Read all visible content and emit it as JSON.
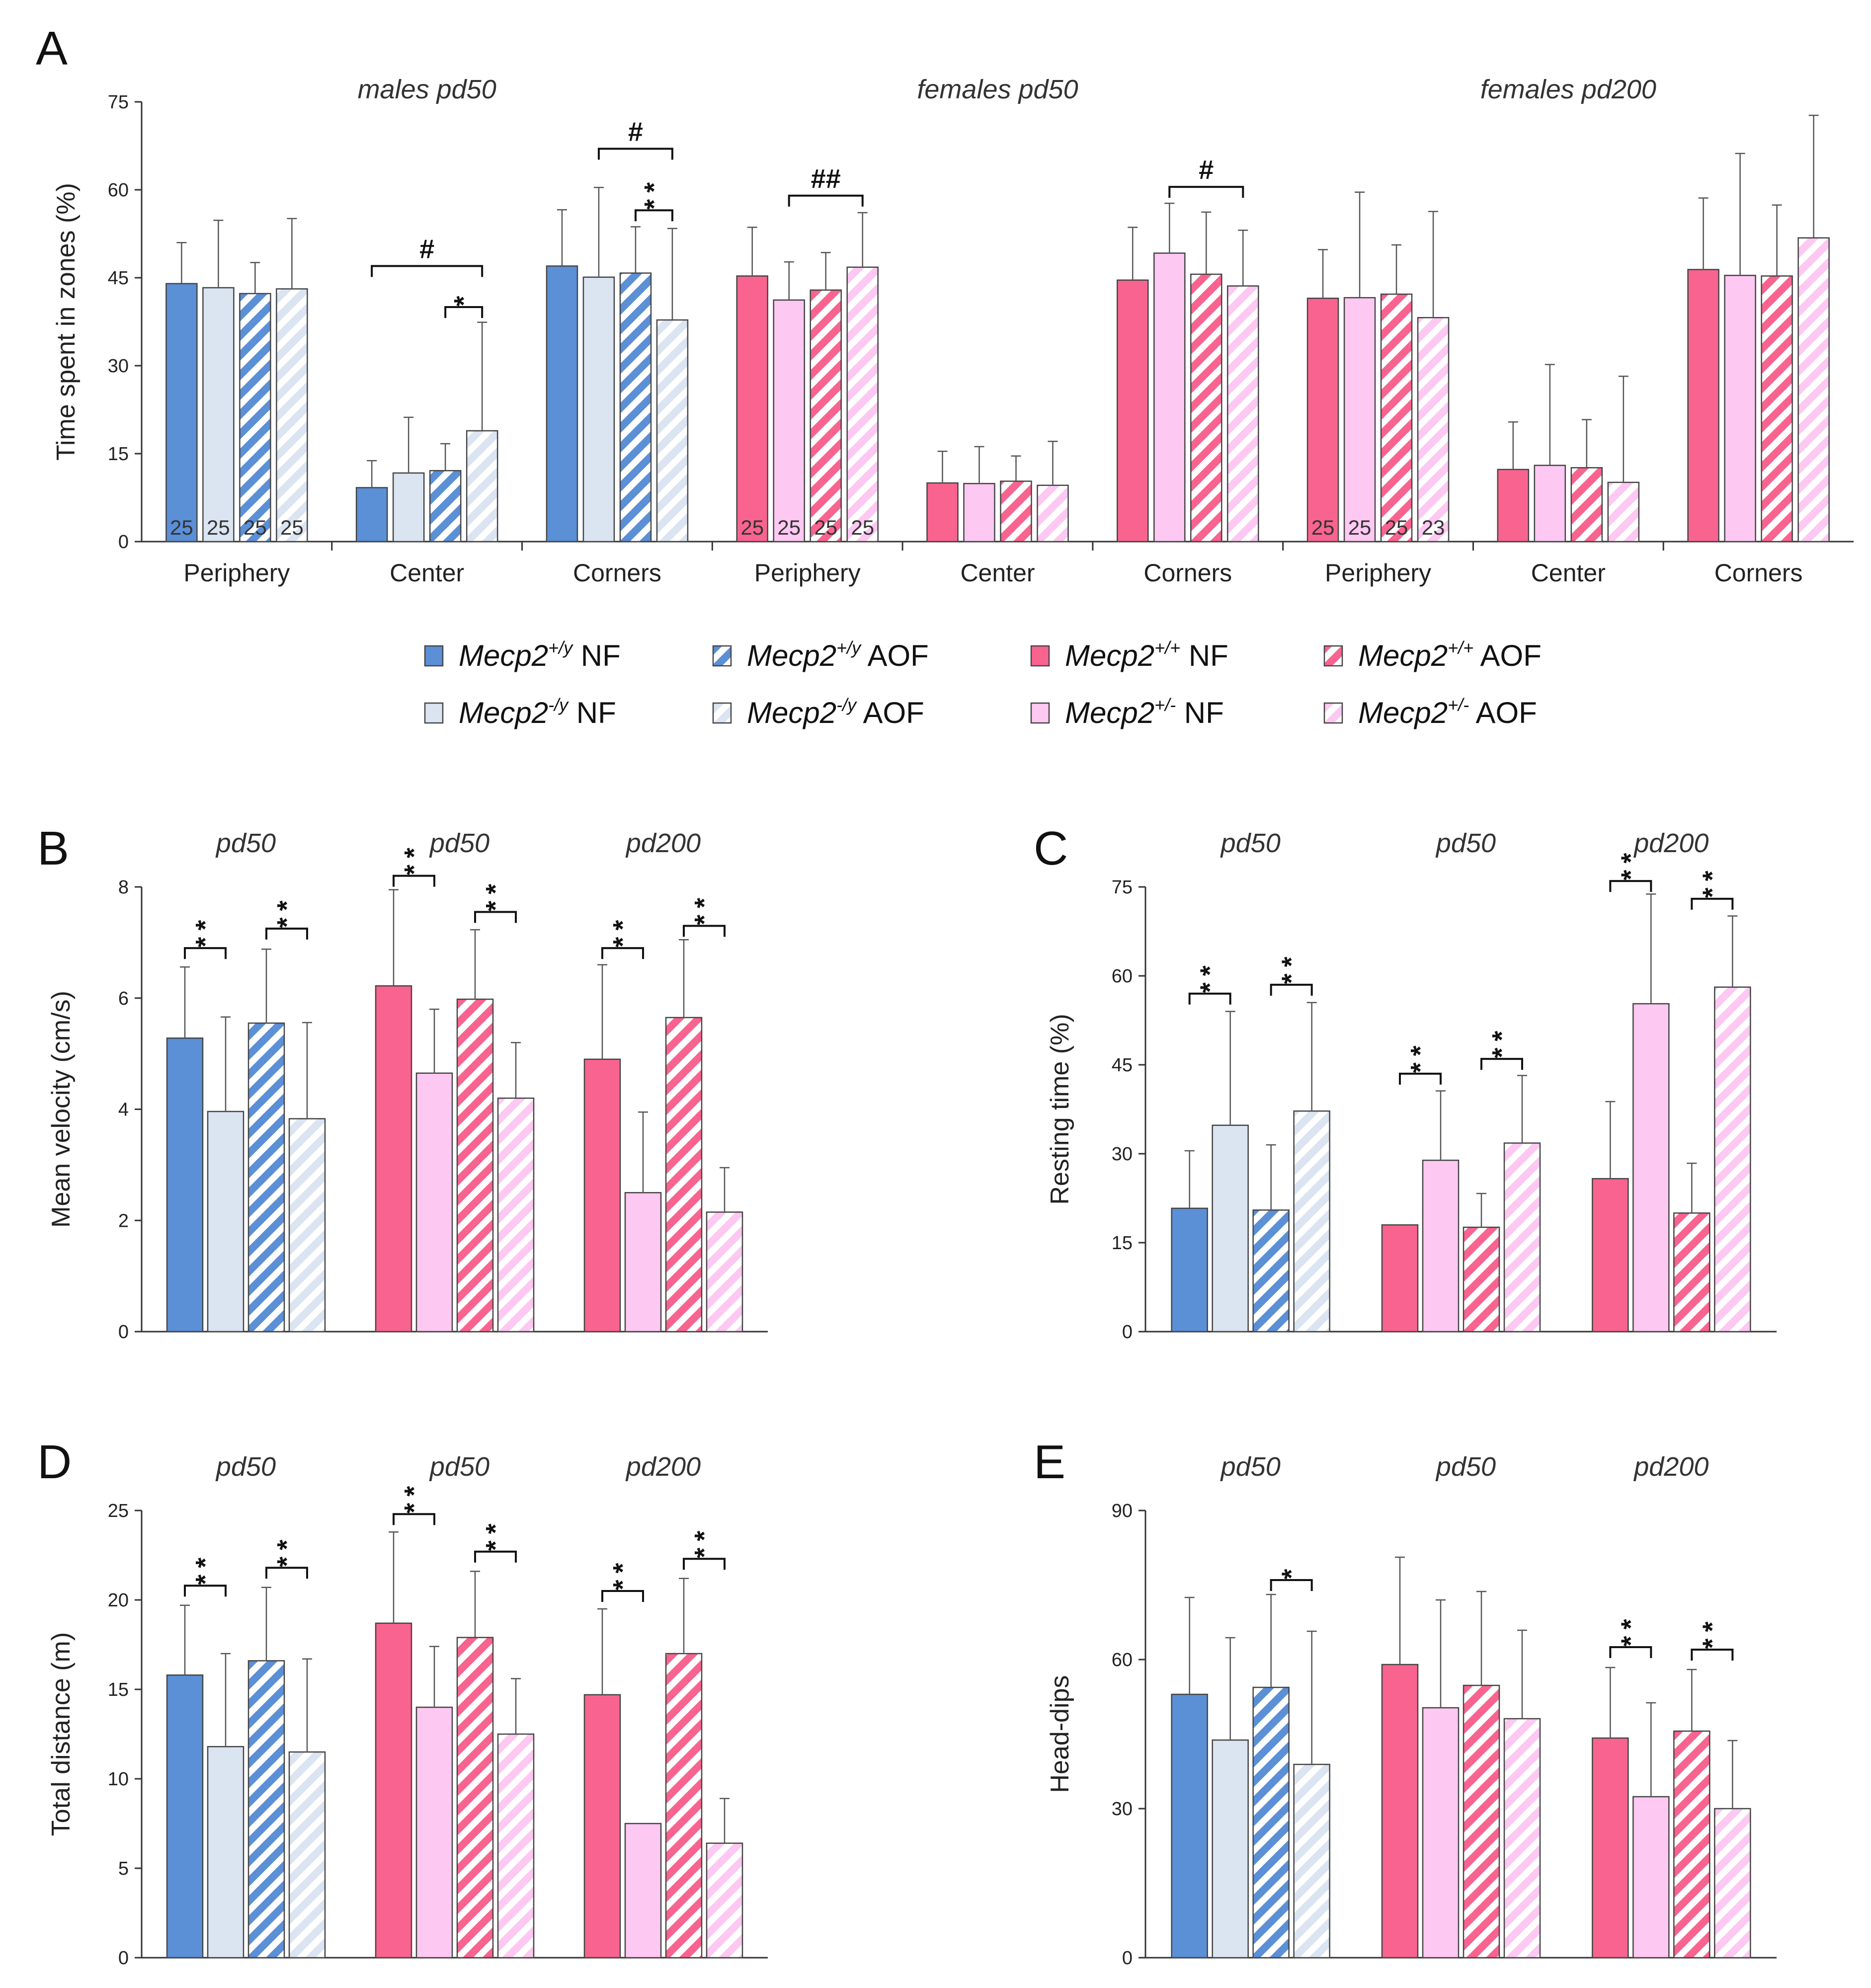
{
  "colors": {
    "male_wt": "#5b8fd6",
    "male_wt_dark": "#4a7cc0",
    "male_ko": "#dbe4f1",
    "female_wt": "#f8648f",
    "female_het": "#fdc8f2",
    "axis": "#333333",
    "bar_edge": "#444444"
  },
  "legend": {
    "items": [
      {
        "gene": "Mecp2",
        "sup": "+/y",
        "group": "NF",
        "fill": "male_wt",
        "pattern": false
      },
      {
        "gene": "Mecp2",
        "sup": "+/y",
        "group": "AOF",
        "fill": "male_wt",
        "pattern": true
      },
      {
        "gene": "Mecp2",
        "sup": "+/+",
        "group": "NF",
        "fill": "female_wt",
        "pattern": false
      },
      {
        "gene": "Mecp2",
        "sup": "+/+",
        "group": "AOF",
        "fill": "female_wt",
        "pattern": true
      },
      {
        "gene": "Mecp2",
        "sup": "-/y",
        "group": "NF",
        "fill": "male_ko",
        "pattern": false
      },
      {
        "gene": "Mecp2",
        "sup": "-/y",
        "group": "AOF",
        "fill": "male_ko",
        "pattern": true
      },
      {
        "gene": "Mecp2",
        "sup": "+/-",
        "group": "NF",
        "fill": "female_het",
        "pattern": false
      },
      {
        "gene": "Mecp2",
        "sup": "+/-",
        "group": "AOF",
        "fill": "female_het",
        "pattern": true
      }
    ]
  },
  "chart_data": [
    {
      "panel": "A",
      "type": "bar",
      "ylabel": "Time spent in zones (%)",
      "ylim": [
        0,
        75
      ],
      "yticks": [
        0,
        15,
        30,
        45,
        60,
        75
      ],
      "groups": [
        "males pd50",
        "females pd50",
        "females pd200"
      ],
      "categories": [
        "Periphery",
        "Center",
        "Corners",
        "Periphery",
        "Center",
        "Corners",
        "Periphery",
        "Center",
        "Corners"
      ],
      "series_styles": [
        [
          "male_wt",
          false
        ],
        [
          "male_ko",
          false
        ],
        [
          "male_wt",
          true
        ],
        [
          "male_ko",
          true
        ]
      ],
      "female_styles": [
        [
          "female_wt",
          false
        ],
        [
          "female_het",
          false
        ],
        [
          "female_wt",
          true
        ],
        [
          "female_het",
          true
        ]
      ],
      "values": [
        [
          44,
          43.3,
          42.3,
          43.1
        ],
        [
          9.2,
          11.7,
          12.1,
          18.9
        ],
        [
          47,
          45.1,
          45.8,
          37.8
        ],
        [
          45.3,
          41.2,
          42.9,
          46.8
        ],
        [
          10,
          9.9,
          10.3,
          9.6
        ],
        [
          44.6,
          49.2,
          45.6,
          43.6
        ],
        [
          41.5,
          41.6,
          42.2,
          38.2
        ],
        [
          12.3,
          13.0,
          12.6,
          10.1
        ],
        [
          46.4,
          45.4,
          45.3,
          51.8
        ]
      ],
      "errors": [
        [
          7,
          11.5,
          5.3,
          12
        ],
        [
          4.6,
          9.5,
          4.6,
          18.5
        ],
        [
          9.6,
          15.3,
          7.9,
          15.6
        ],
        [
          8.3,
          6.5,
          6.4,
          9.3
        ],
        [
          5.4,
          6.3,
          4.3,
          7.5
        ],
        [
          9,
          8.5,
          10.6,
          9.5
        ],
        [
          8.3,
          18,
          8.4,
          18.1
        ],
        [
          8.1,
          17.2,
          8.2,
          18.1
        ],
        [
          12.2,
          20.8,
          12.1,
          20.9
        ]
      ],
      "n_labels": [
        [
          "25",
          "25",
          "25",
          "25"
        ],
        [
          "25",
          "25",
          "25",
          "25"
        ],
        [
          "25",
          "25",
          "25",
          "23"
        ]
      ],
      "annotations": [
        {
          "text": "#",
          "cat": 1,
          "from": 0,
          "to": 3,
          "y": 47
        },
        {
          "text": "*",
          "cat": 1,
          "from": 2,
          "to": 3,
          "y": 40
        },
        {
          "text": "#",
          "cat": 2,
          "from": 1,
          "to": 3,
          "y": 67
        },
        {
          "text": "**",
          "cat": 2,
          "from": 2,
          "to": 3,
          "y": 56.5
        },
        {
          "text": "##",
          "cat": 3,
          "from": 1,
          "to": 3,
          "y": 59
        },
        {
          "text": "#",
          "cat": 5,
          "from": 1,
          "to": 3,
          "y": 60.5
        }
      ]
    },
    {
      "panel": "B",
      "type": "bar",
      "ylabel": "Mean velocity (cm/s)",
      "ylim": [
        0,
        8
      ],
      "yticks": [
        0,
        2,
        4,
        6,
        8
      ],
      "groups": [
        "pd50",
        "pd50",
        "pd200"
      ],
      "values": [
        [
          5.28,
          3.96,
          5.55,
          3.83
        ],
        [
          6.22,
          4.65,
          5.98,
          4.2
        ],
        [
          4.9,
          2.5,
          5.65,
          2.15
        ]
      ],
      "errors": [
        [
          1.28,
          1.7,
          1.33,
          1.73
        ],
        [
          1.73,
          1.15,
          1.25,
          1.0
        ],
        [
          1.7,
          1.45,
          1.4,
          0.8
        ]
      ],
      "sig": [
        [
          {
            "text": "**",
            "from": 0,
            "to": 1,
            "y": 6.9
          },
          {
            "text": "**",
            "from": 2,
            "to": 3,
            "y": 7.25
          }
        ],
        [
          {
            "text": "**",
            "from": 0,
            "to": 1,
            "y": 8.2
          },
          {
            "text": "**",
            "from": 2,
            "to": 3,
            "y": 7.55
          }
        ],
        [
          {
            "text": "**",
            "from": 0,
            "to": 1,
            "y": 6.9
          },
          {
            "text": "**",
            "from": 2,
            "to": 3,
            "y": 7.3
          }
        ]
      ]
    },
    {
      "panel": "C",
      "type": "bar",
      "ylabel": "Resting time (%)",
      "ylim": [
        0,
        75
      ],
      "yticks": [
        0,
        15,
        30,
        45,
        60,
        75
      ],
      "groups": [
        "pd50",
        "pd50",
        "pd200"
      ],
      "values": [
        [
          20.8,
          34.8,
          20.5,
          37.2
        ],
        [
          18.0,
          28.9,
          17.6,
          31.8
        ],
        [
          25.8,
          55.3,
          20,
          58.1
        ]
      ],
      "errors": [
        [
          9.7,
          19.2,
          11.0,
          18.3
        ],
        [
          0,
          11.7,
          5.7,
          11.4
        ],
        [
          13.0,
          18.5,
          8.4,
          12.0
        ]
      ],
      "sig": [
        [
          {
            "text": "**",
            "from": 0,
            "to": 1,
            "y": 57
          },
          {
            "text": "**",
            "from": 2,
            "to": 3,
            "y": 58.5
          }
        ],
        [
          {
            "text": "**",
            "from": 0,
            "to": 1,
            "y": 43.5
          },
          {
            "text": "**",
            "from": 2,
            "to": 3,
            "y": 46
          }
        ],
        [
          {
            "text": "**",
            "from": 0,
            "to": 1,
            "y": 76
          },
          {
            "text": "**",
            "from": 2,
            "to": 3,
            "y": 73
          }
        ]
      ]
    },
    {
      "panel": "D",
      "type": "bar",
      "ylabel": "Total distance (m)",
      "ylim": [
        0,
        25
      ],
      "yticks": [
        0,
        5,
        10,
        15,
        20,
        25
      ],
      "groups": [
        "pd50",
        "pd50",
        "pd200"
      ],
      "values": [
        [
          15.8,
          11.8,
          16.6,
          11.5
        ],
        [
          18.7,
          14.0,
          17.9,
          12.5
        ],
        [
          14.7,
          7.5,
          17.0,
          6.4
        ]
      ],
      "errors": [
        [
          3.9,
          5.2,
          4.1,
          5.2
        ],
        [
          5.1,
          3.4,
          3.7,
          3.1
        ],
        [
          4.8,
          0,
          4.2,
          2.5
        ]
      ],
      "sig": [
        [
          {
            "text": "**",
            "from": 0,
            "to": 1,
            "y": 20.8
          },
          {
            "text": "**",
            "from": 2,
            "to": 3,
            "y": 21.8
          }
        ],
        [
          {
            "text": "**",
            "from": 0,
            "to": 1,
            "y": 24.8
          },
          {
            "text": "**",
            "from": 2,
            "to": 3,
            "y": 22.7
          }
        ],
        [
          {
            "text": "**",
            "from": 0,
            "to": 1,
            "y": 20.5
          },
          {
            "text": "**",
            "from": 2,
            "to": 3,
            "y": 22.3
          }
        ]
      ]
    },
    {
      "panel": "E",
      "type": "bar",
      "ylabel": "Head-dips",
      "ylim": [
        0,
        90
      ],
      "yticks": [
        0,
        30,
        60,
        90
      ],
      "groups": [
        "pd50",
        "pd50",
        "pd200"
      ],
      "values": [
        [
          53,
          43.8,
          54.4,
          38.9
        ],
        [
          59,
          50.3,
          54.8,
          48.1
        ],
        [
          44.2,
          32.4,
          45.6,
          30
        ]
      ],
      "errors": [
        [
          19.5,
          20.6,
          18.7,
          26.8
        ],
        [
          21.6,
          21.7,
          18.9,
          17.8
        ],
        [
          14.2,
          18.9,
          12.4,
          13.7
        ]
      ],
      "sig": [
        [
          {
            "text": "*",
            "from": 2,
            "to": 3,
            "y": 76
          }
        ],
        [],
        [
          {
            "text": "**",
            "from": 0,
            "to": 1,
            "y": 62.5
          },
          {
            "text": "**",
            "from": 2,
            "to": 3,
            "y": 62
          }
        ]
      ]
    }
  ]
}
